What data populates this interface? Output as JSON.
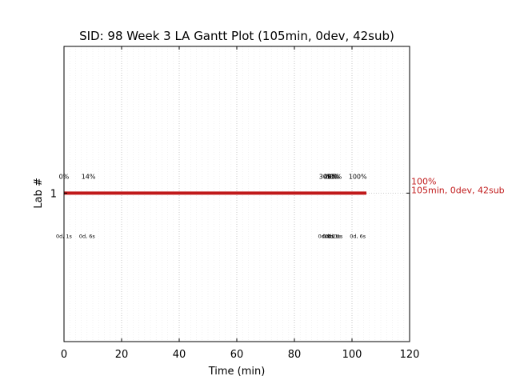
{
  "chart_data": {
    "type": "gantt",
    "title": "SID: 98 Week 3 LA Gantt Plot (105min, 0dev, 42sub)",
    "xlabel": "Time (min)",
    "ylabel": "Lab #",
    "xlim": [
      0,
      120
    ],
    "x_ticks": [
      0,
      20,
      40,
      60,
      80,
      100,
      120
    ],
    "x_tick_labels": [
      "0",
      "20",
      "40",
      "60",
      "80",
      "100",
      "120"
    ],
    "y_ticks": [
      "1"
    ],
    "grid": "vertical dotted major lines at every 20 min, faint minor lines at every 2 min",
    "bar_color": "#c0191a",
    "bars": [
      {
        "lab": "1",
        "start": 0,
        "end": 105,
        "end_label_line1": "100%",
        "end_label_line2": "105min, 0dev, 42sub"
      }
    ],
    "annotations_top": [
      {
        "x": 0,
        "text": "0%"
      },
      {
        "x": 8.5,
        "text": "14%"
      },
      {
        "x": 91,
        "text": "30%"
      },
      {
        "x": 92.5,
        "text": "40%"
      },
      {
        "x": 93.3,
        "text": "60%"
      },
      {
        "x": 94,
        "text": "85%"
      },
      {
        "x": 102,
        "text": "100%"
      }
    ],
    "annotations_bottom": [
      {
        "x": 0,
        "text": "0d, 1s"
      },
      {
        "x": 8,
        "text": "0d, 6s"
      },
      {
        "x": 91,
        "text": "0d, 1s"
      },
      {
        "x": 92.5,
        "text": "0d, 2s"
      },
      {
        "x": 93.3,
        "text": "0d, 1s"
      },
      {
        "x": 94,
        "text": "0d, 1s"
      },
      {
        "x": 102,
        "text": "0d, 6s"
      }
    ]
  }
}
